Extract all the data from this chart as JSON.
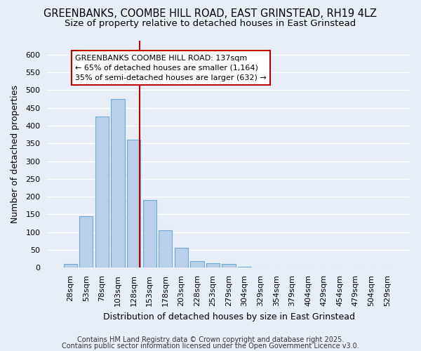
{
  "title_line1": "GREENBANKS, COOMBE HILL ROAD, EAST GRINSTEAD, RH19 4LZ",
  "title_line2": "Size of property relative to detached houses in East Grinstead",
  "xlabel": "Distribution of detached houses by size in East Grinstead",
  "ylabel": "Number of detached properties",
  "footer_line1": "Contains HM Land Registry data © Crown copyright and database right 2025.",
  "footer_line2": "Contains public sector information licensed under the Open Government Licence v3.0.",
  "categories": [
    "28sqm",
    "53sqm",
    "78sqm",
    "103sqm",
    "128sqm",
    "153sqm",
    "178sqm",
    "203sqm",
    "228sqm",
    "253sqm",
    "279sqm",
    "304sqm",
    "329sqm",
    "354sqm",
    "379sqm",
    "404sqm",
    "429sqm",
    "454sqm",
    "479sqm",
    "504sqm",
    "529sqm"
  ],
  "values": [
    10,
    145,
    425,
    475,
    360,
    190,
    105,
    55,
    18,
    12,
    10,
    3,
    1,
    1,
    0,
    0,
    0,
    0,
    0,
    0,
    0
  ],
  "bar_color": "#b8d0ea",
  "bar_edge_color": "#6aaad4",
  "annotation_border_color": "#c00000",
  "annotation_text_line1": "GREENBANKS COOMBE HILL ROAD: 137sqm",
  "annotation_line2": "← 65% of detached houses are smaller (1,164)",
  "annotation_line3": "35% of semi-detached houses are larger (632) →",
  "vline_color": "#c00000",
  "ylim": [
    0,
    640
  ],
  "yticks": [
    0,
    50,
    100,
    150,
    200,
    250,
    300,
    350,
    400,
    450,
    500,
    550,
    600
  ],
  "bg_color": "#e8eef8",
  "grid_color": "#ffffff",
  "title_fontsize": 10.5,
  "subtitle_fontsize": 9.5,
  "axis_label_fontsize": 9,
  "tick_fontsize": 8
}
